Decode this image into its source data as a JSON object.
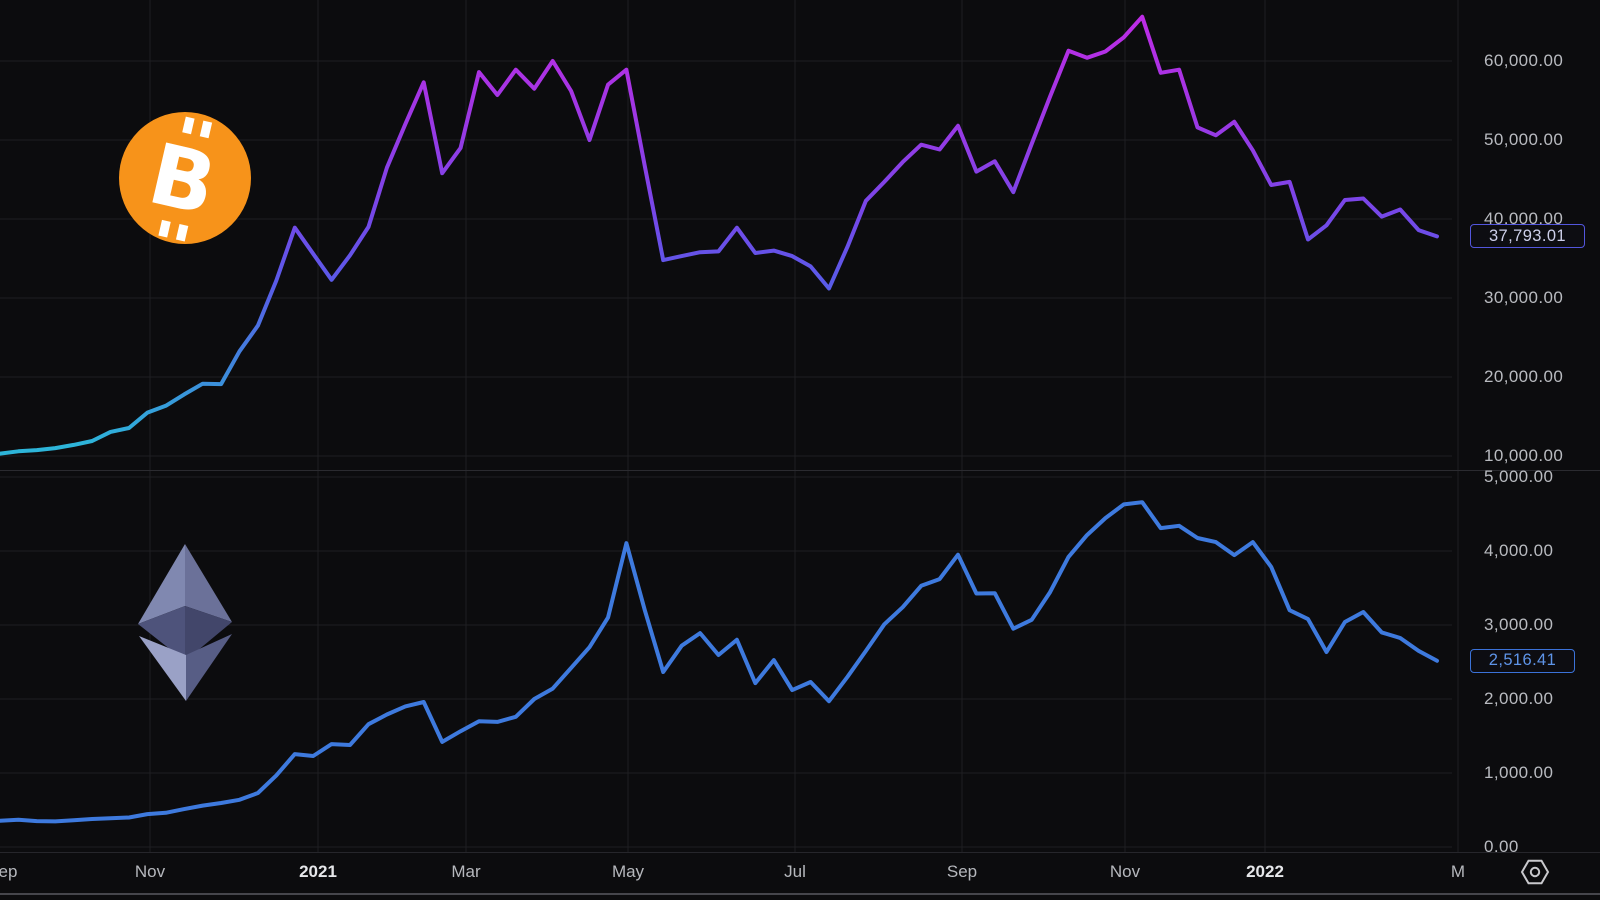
{
  "colors": {
    "background": "#0c0c0e",
    "grid": "#1e1e22",
    "panel_divider": "#2b2b30",
    "axis_text": "#b9bbc0",
    "axis_text_bold": "#e6e7ea",
    "eth_line": "#3e7ade",
    "btc_gradient_top": "#c32ae6",
    "btc_gradient_mid": "#5a5ae8",
    "btc_gradient_bottom": "#2db5d9",
    "btc_badge_border": "#5356dd",
    "eth_badge_border": "#3b72d8",
    "bitcoin_orange": "#f7931a",
    "ethereum_gray": "#7d85ae"
  },
  "top_panel": {
    "asset": "Bitcoin",
    "y_axis_labels": [
      "60,000.00",
      "50,000.00",
      "40,000.00",
      "30,000.00",
      "20,000.00",
      "10,000.00"
    ],
    "price_badge": "37,793.01"
  },
  "bottom_panel": {
    "asset": "Ethereum",
    "y_axis_labels": [
      "5,000.00",
      "4,000.00",
      "3,000.00",
      "2,000.00",
      "1,000.00",
      "0.00"
    ],
    "price_badge": "2,516.41"
  },
  "time_axis": {
    "labels": [
      {
        "text": "ep",
        "bold": false
      },
      {
        "text": "Nov",
        "bold": false
      },
      {
        "text": "2021",
        "bold": true
      },
      {
        "text": "Mar",
        "bold": false
      },
      {
        "text": "May",
        "bold": false
      },
      {
        "text": "Jul",
        "bold": false
      },
      {
        "text": "Sep",
        "bold": false
      },
      {
        "text": "Nov",
        "bold": false
      },
      {
        "text": "2022",
        "bold": true
      },
      {
        "text": "M",
        "bold": false
      }
    ]
  },
  "chart_data": [
    {
      "type": "line",
      "name": "BTC/USD",
      "pane": "top",
      "x_unit": "weekly",
      "x_range": [
        "Sep 2020",
        "Mar 2022"
      ],
      "yticks": [
        60000,
        50000,
        40000,
        30000,
        20000,
        10000
      ],
      "ylim": [
        8200,
        67700
      ],
      "grid": true,
      "legend_position": "none",
      "color_style": "vertical-gradient cyan(low) -> blue -> purple -> magenta(high)",
      "last_value": 37793.01,
      "values": [
        10300,
        10600,
        10750,
        11000,
        11400,
        11900,
        13050,
        13550,
        15500,
        16350,
        17800,
        19150,
        19100,
        23250,
        26500,
        32200,
        38900,
        35600,
        32300,
        35400,
        39000,
        46500,
        52000,
        57300,
        45800,
        49000,
        58600,
        55700,
        58900,
        56500,
        60000,
        56200,
        50000,
        57000,
        58900,
        46700,
        34800,
        35300,
        35800,
        35900,
        38900,
        35700,
        36000,
        35300,
        34000,
        31200,
        36500,
        42300,
        44700,
        47200,
        49400,
        48800,
        51800,
        46000,
        47300,
        43400,
        49500,
        55500,
        61300,
        60400,
        61200,
        63000,
        65600,
        58500,
        58900,
        51600,
        50600,
        52300,
        48700,
        44300,
        44700,
        37400,
        39200,
        42400,
        42600,
        40300,
        41200,
        38600,
        37793.01
      ]
    },
    {
      "type": "line",
      "name": "ETH/USD",
      "pane": "bottom",
      "x_unit": "weekly",
      "x_range": [
        "Sep 2020",
        "Mar 2022"
      ],
      "yticks": [
        5000,
        4000,
        3000,
        2000,
        1000,
        0
      ],
      "ylim": [
        0,
        5150
      ],
      "grid": true,
      "legend_position": "none",
      "color_style": "solid blue",
      "last_value": 2516.41,
      "values": [
        355,
        368,
        350,
        346,
        362,
        378,
        388,
        398,
        445,
        462,
        512,
        560,
        595,
        638,
        730,
        968,
        1255,
        1230,
        1390,
        1378,
        1660,
        1790,
        1900,
        1960,
        1420,
        1565,
        1700,
        1690,
        1760,
        2000,
        2140,
        2420,
        2700,
        3100,
        4105,
        3200,
        2365,
        2720,
        2890,
        2595,
        2800,
        2215,
        2525,
        2120,
        2230,
        1970,
        2300,
        2650,
        3010,
        3240,
        3530,
        3620,
        3950,
        3425,
        3430,
        2950,
        3070,
        3445,
        3920,
        4215,
        4445,
        4630,
        4660,
        4310,
        4340,
        4175,
        4120,
        3945,
        4120,
        3785,
        3200,
        3080,
        2635,
        3040,
        3175,
        2900,
        2825,
        2650,
        2516.41
      ]
    }
  ]
}
